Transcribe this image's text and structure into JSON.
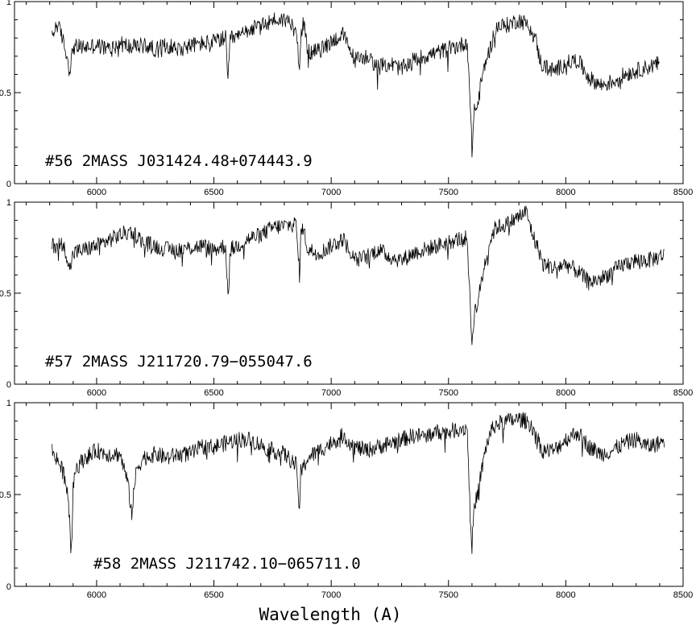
{
  "chart_data": {
    "type": "line",
    "xlabel": "Wavelength (A)",
    "xlim": [
      5650,
      8500
    ],
    "x_ticks": [
      6000,
      6500,
      7000,
      7500,
      8000,
      8500
    ],
    "ylim": [
      0,
      1
    ],
    "y_ticks": [
      0,
      0.5,
      1
    ],
    "y_tick_labels": [
      "0",
      "0.5",
      "1"
    ],
    "grid": false,
    "panels": [
      {
        "label": "#56  2MASS  J031424.48+074443.9",
        "series": [
          {
            "x": [
              5810,
              5830,
              5850,
              5870,
              5885,
              5900,
              5950,
              6000,
              6050,
              6100,
              6150,
              6200,
              6250,
              6300,
              6350,
              6400,
              6450,
              6500,
              6550,
              6560,
              6570,
              6600,
              6650,
              6700,
              6750,
              6800,
              6850,
              6865,
              6870,
              6880,
              6900,
              6950,
              7000,
              7050,
              7100,
              7150,
              7200,
              7250,
              7300,
              7350,
              7400,
              7450,
              7500,
              7550,
              7580,
              7590,
              7600,
              7610,
              7620,
              7640,
              7660,
              7680,
              7700,
              7750,
              7800,
              7830,
              7850,
              7870,
              7890,
              7900,
              7950,
              8000,
              8050,
              8100,
              8150,
              8200,
              8250,
              8300,
              8350,
              8400
            ],
            "y": [
              0.8,
              0.88,
              0.82,
              0.72,
              0.62,
              0.75,
              0.75,
              0.76,
              0.74,
              0.77,
              0.75,
              0.76,
              0.74,
              0.76,
              0.74,
              0.76,
              0.77,
              0.78,
              0.8,
              0.55,
              0.8,
              0.8,
              0.85,
              0.86,
              0.9,
              0.9,
              0.88,
              0.62,
              0.8,
              0.9,
              0.72,
              0.73,
              0.78,
              0.82,
              0.68,
              0.7,
              0.64,
              0.66,
              0.63,
              0.68,
              0.7,
              0.72,
              0.74,
              0.76,
              0.78,
              0.5,
              0.18,
              0.42,
              0.4,
              0.56,
              0.68,
              0.75,
              0.86,
              0.87,
              0.9,
              0.88,
              0.86,
              0.8,
              0.68,
              0.65,
              0.62,
              0.66,
              0.68,
              0.58,
              0.54,
              0.56,
              0.6,
              0.62,
              0.64,
              0.66
            ]
          }
        ]
      },
      {
        "label": "#57  2MASS  J211720.79−055047.6",
        "series": [
          {
            "x": [
              5810,
              5850,
              5870,
              5885,
              5900,
              5950,
              6000,
              6050,
              6100,
              6150,
              6200,
              6250,
              6300,
              6350,
              6400,
              6450,
              6500,
              6550,
              6560,
              6570,
              6600,
              6650,
              6700,
              6750,
              6800,
              6850,
              6865,
              6870,
              6880,
              6900,
              6950,
              7000,
              7050,
              7100,
              7150,
              7200,
              7250,
              7300,
              7350,
              7400,
              7450,
              7500,
              7550,
              7580,
              7590,
              7600,
              7610,
              7620,
              7640,
              7660,
              7680,
              7700,
              7750,
              7800,
              7830,
              7850,
              7870,
              7890,
              7900,
              7950,
              8000,
              8050,
              8100,
              8150,
              8200,
              8250,
              8300,
              8350,
              8400,
              8420
            ],
            "y": [
              0.76,
              0.77,
              0.73,
              0.62,
              0.72,
              0.74,
              0.76,
              0.79,
              0.82,
              0.84,
              0.78,
              0.76,
              0.74,
              0.74,
              0.75,
              0.76,
              0.74,
              0.76,
              0.48,
              0.74,
              0.76,
              0.8,
              0.82,
              0.86,
              0.87,
              0.88,
              0.6,
              0.82,
              0.86,
              0.74,
              0.72,
              0.76,
              0.8,
              0.68,
              0.7,
              0.74,
              0.7,
              0.68,
              0.72,
              0.74,
              0.76,
              0.78,
              0.8,
              0.8,
              0.5,
              0.22,
              0.4,
              0.42,
              0.56,
              0.7,
              0.8,
              0.86,
              0.88,
              0.92,
              0.95,
              0.86,
              0.78,
              0.72,
              0.66,
              0.64,
              0.66,
              0.62,
              0.56,
              0.58,
              0.62,
              0.66,
              0.68,
              0.68,
              0.7,
              0.72
            ]
          }
        ]
      },
      {
        "label": "#58  2MASS  J211742.10−065711.0",
        "series": [
          {
            "x": [
              5810,
              5830,
              5850,
              5870,
              5885,
              5890,
              5895,
              5900,
              5910,
              5950,
              6000,
              6050,
              6100,
              6130,
              6150,
              6170,
              6200,
              6250,
              6300,
              6350,
              6400,
              6450,
              6500,
              6550,
              6600,
              6650,
              6700,
              6750,
              6800,
              6850,
              6865,
              6870,
              6880,
              6900,
              6950,
              7000,
              7050,
              7100,
              7150,
              7200,
              7250,
              7300,
              7350,
              7400,
              7450,
              7500,
              7550,
              7580,
              7590,
              7600,
              7610,
              7620,
              7640,
              7660,
              7680,
              7700,
              7750,
              7800,
              7830,
              7850,
              7870,
              7890,
              7900,
              7950,
              8000,
              8050,
              8100,
              8150,
              8200,
              8250,
              8300,
              8350,
              8400,
              8420
            ],
            "y": [
              0.74,
              0.7,
              0.64,
              0.58,
              0.38,
              0.18,
              0.28,
              0.56,
              0.64,
              0.7,
              0.74,
              0.72,
              0.72,
              0.58,
              0.4,
              0.64,
              0.7,
              0.72,
              0.7,
              0.72,
              0.72,
              0.76,
              0.76,
              0.78,
              0.8,
              0.8,
              0.77,
              0.74,
              0.72,
              0.66,
              0.42,
              0.62,
              0.64,
              0.7,
              0.74,
              0.78,
              0.82,
              0.76,
              0.74,
              0.76,
              0.78,
              0.8,
              0.82,
              0.82,
              0.84,
              0.84,
              0.86,
              0.86,
              0.48,
              0.22,
              0.44,
              0.48,
              0.62,
              0.76,
              0.84,
              0.88,
              0.9,
              0.91,
              0.9,
              0.88,
              0.84,
              0.76,
              0.74,
              0.74,
              0.8,
              0.84,
              0.76,
              0.72,
              0.74,
              0.78,
              0.8,
              0.76,
              0.78,
              0.8
            ]
          }
        ]
      }
    ]
  }
}
